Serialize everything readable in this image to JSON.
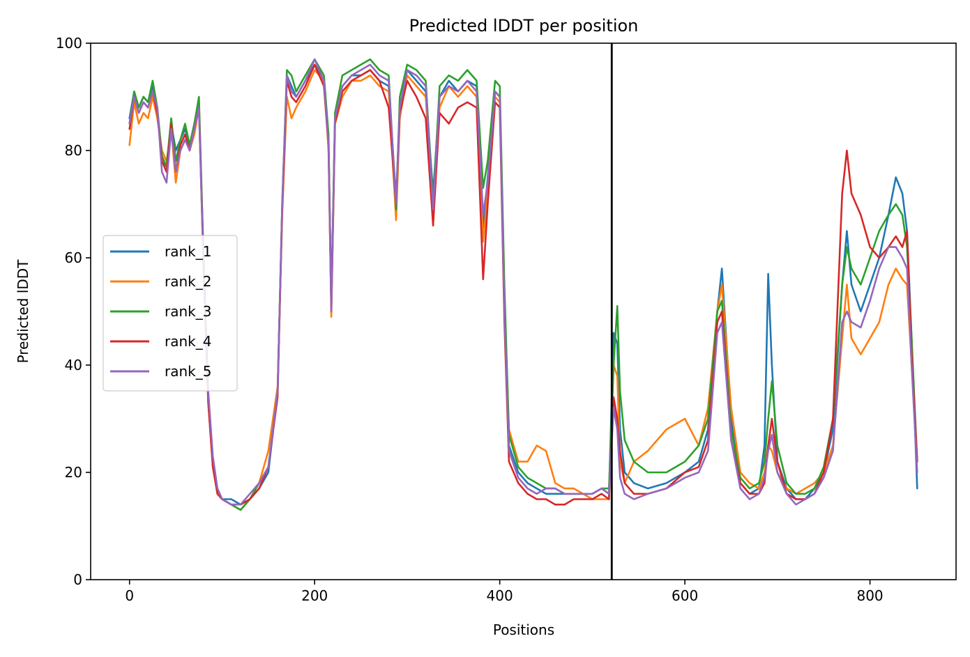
{
  "chart_data": {
    "type": "line",
    "title": "Predicted lDDT per position",
    "xlabel": "Positions",
    "ylabel": "Predicted lDDT",
    "xlim": [
      -42,
      893
    ],
    "ylim": [
      0,
      100
    ],
    "xticks": [
      0,
      200,
      400,
      600,
      800
    ],
    "yticks": [
      0,
      20,
      40,
      60,
      80,
      100
    ],
    "vline_x": 521,
    "grid": false,
    "legend_position": "center-left",
    "series": [
      {
        "name": "rank_1",
        "color": "#1f77b4",
        "x": [
          0,
          5,
          10,
          15,
          20,
          25,
          30,
          35,
          40,
          45,
          50,
          55,
          60,
          65,
          70,
          75,
          80,
          85,
          90,
          95,
          100,
          110,
          120,
          130,
          140,
          150,
          160,
          165,
          170,
          175,
          180,
          190,
          200,
          210,
          215,
          218,
          222,
          230,
          240,
          250,
          260,
          270,
          280,
          288,
          292,
          300,
          310,
          320,
          328,
          335,
          345,
          355,
          365,
          375,
          382,
          387,
          395,
          400,
          405,
          410,
          420,
          430,
          440,
          450,
          460,
          470,
          480,
          490,
          500,
          510,
          518,
          523,
          527,
          530,
          535,
          545,
          560,
          580,
          600,
          615,
          625,
          635,
          640,
          650,
          660,
          670,
          680,
          686,
          690,
          694,
          700,
          710,
          720,
          730,
          740,
          750,
          760,
          770,
          775,
          780,
          790,
          800,
          810,
          820,
          828,
          835,
          840,
          845,
          851
        ],
        "y": [
          86,
          91,
          88,
          90,
          89,
          92,
          88,
          78,
          77,
          85,
          80,
          82,
          84,
          81,
          85,
          89,
          60,
          35,
          22,
          16,
          15,
          15,
          14,
          15,
          17,
          20,
          35,
          70,
          94,
          92,
          90,
          93,
          96,
          93,
          82,
          52,
          86,
          92,
          94,
          94,
          95,
          93,
          92,
          71,
          88,
          95,
          93,
          91,
          72,
          90,
          93,
          91,
          93,
          92,
          65,
          75,
          91,
          90,
          50,
          25,
          20,
          18,
          17,
          16,
          16,
          16,
          16,
          16,
          16,
          17,
          16,
          46,
          44,
          28,
          20,
          18,
          17,
          18,
          20,
          22,
          28,
          50,
          58,
          30,
          18,
          16,
          17,
          25,
          57,
          40,
          22,
          17,
          15,
          15,
          17,
          20,
          28,
          55,
          65,
          55,
          50,
          55,
          60,
          68,
          75,
          72,
          65,
          45,
          17
        ]
      },
      {
        "name": "rank_2",
        "color": "#ff7f0e",
        "x": [
          0,
          5,
          10,
          15,
          20,
          25,
          30,
          35,
          40,
          45,
          50,
          55,
          60,
          65,
          70,
          75,
          80,
          85,
          90,
          95,
          100,
          110,
          120,
          130,
          140,
          150,
          160,
          165,
          170,
          175,
          180,
          190,
          200,
          210,
          215,
          218,
          222,
          230,
          240,
          250,
          260,
          270,
          280,
          288,
          292,
          300,
          310,
          320,
          328,
          335,
          345,
          355,
          365,
          375,
          382,
          387,
          395,
          400,
          405,
          410,
          420,
          430,
          440,
          450,
          460,
          470,
          480,
          490,
          500,
          510,
          518,
          523,
          527,
          530,
          535,
          545,
          560,
          580,
          600,
          615,
          625,
          635,
          640,
          650,
          660,
          670,
          680,
          686,
          690,
          694,
          700,
          710,
          720,
          730,
          740,
          750,
          760,
          770,
          775,
          780,
          790,
          800,
          810,
          820,
          828,
          835,
          840,
          845,
          851
        ],
        "y": [
          81,
          89,
          85,
          87,
          86,
          90,
          86,
          80,
          78,
          84,
          74,
          80,
          82,
          80,
          83,
          88,
          58,
          33,
          21,
          16,
          15,
          14,
          13,
          15,
          18,
          24,
          36,
          68,
          90,
          86,
          88,
          91,
          95,
          93,
          80,
          49,
          85,
          90,
          93,
          93,
          94,
          92,
          91,
          67,
          86,
          94,
          92,
          90,
          68,
          88,
          92,
          90,
          92,
          90,
          63,
          72,
          90,
          89,
          52,
          28,
          22,
          22,
          25,
          24,
          18,
          17,
          17,
          16,
          15,
          15,
          15,
          40,
          38,
          22,
          18,
          22,
          24,
          28,
          30,
          25,
          32,
          50,
          55,
          32,
          20,
          18,
          17,
          20,
          25,
          24,
          20,
          17,
          16,
          17,
          18,
          20,
          25,
          45,
          55,
          45,
          42,
          45,
          48,
          55,
          58,
          56,
          55,
          40,
          22
        ]
      },
      {
        "name": "rank_3",
        "color": "#2ca02c",
        "x": [
          0,
          5,
          10,
          15,
          20,
          25,
          30,
          35,
          40,
          45,
          50,
          55,
          60,
          65,
          70,
          75,
          80,
          85,
          90,
          95,
          100,
          110,
          120,
          130,
          140,
          150,
          160,
          165,
          170,
          175,
          180,
          190,
          200,
          210,
          215,
          218,
          222,
          230,
          240,
          250,
          260,
          270,
          280,
          288,
          292,
          300,
          310,
          320,
          328,
          335,
          345,
          355,
          365,
          375,
          382,
          387,
          395,
          400,
          405,
          410,
          420,
          430,
          440,
          450,
          460,
          470,
          480,
          490,
          500,
          510,
          518,
          523,
          527,
          530,
          535,
          545,
          560,
          580,
          600,
          615,
          625,
          635,
          640,
          650,
          660,
          670,
          680,
          686,
          690,
          694,
          700,
          710,
          720,
          730,
          740,
          750,
          760,
          770,
          775,
          780,
          790,
          800,
          810,
          820,
          828,
          835,
          840,
          845,
          851
        ],
        "y": [
          85,
          91,
          88,
          90,
          89,
          93,
          88,
          79,
          77,
          86,
          78,
          82,
          85,
          81,
          85,
          90,
          60,
          34,
          22,
          17,
          15,
          14,
          13,
          15,
          18,
          21,
          35,
          70,
          95,
          94,
          91,
          94,
          97,
          94,
          83,
          51,
          87,
          94,
          95,
          96,
          97,
          95,
          94,
          69,
          90,
          96,
          95,
          93,
          70,
          92,
          94,
          93,
          95,
          93,
          73,
          78,
          93,
          92,
          55,
          27,
          21,
          19,
          18,
          17,
          17,
          16,
          16,
          16,
          16,
          17,
          17,
          40,
          51,
          35,
          26,
          22,
          20,
          20,
          22,
          25,
          30,
          50,
          52,
          28,
          19,
          17,
          18,
          22,
          30,
          37,
          25,
          18,
          16,
          16,
          17,
          21,
          30,
          55,
          62,
          58,
          55,
          60,
          65,
          68,
          70,
          68,
          62,
          45,
          22
        ]
      },
      {
        "name": "rank_4",
        "color": "#d62728",
        "x": [
          0,
          5,
          10,
          15,
          20,
          25,
          30,
          35,
          40,
          45,
          50,
          55,
          60,
          65,
          70,
          75,
          80,
          85,
          90,
          95,
          100,
          110,
          120,
          130,
          140,
          150,
          160,
          165,
          170,
          175,
          180,
          190,
          200,
          210,
          215,
          218,
          222,
          230,
          240,
          250,
          260,
          270,
          280,
          288,
          292,
          300,
          310,
          320,
          328,
          335,
          345,
          355,
          365,
          375,
          382,
          387,
          395,
          400,
          405,
          410,
          420,
          430,
          440,
          450,
          460,
          470,
          480,
          490,
          500,
          510,
          518,
          523,
          527,
          530,
          535,
          545,
          560,
          580,
          600,
          615,
          625,
          635,
          640,
          650,
          660,
          670,
          680,
          686,
          690,
          694,
          700,
          710,
          720,
          730,
          740,
          750,
          760,
          770,
          775,
          780,
          790,
          800,
          810,
          820,
          828,
          835,
          840,
          845,
          851
        ],
        "y": [
          84,
          90,
          87,
          89,
          88,
          91,
          87,
          78,
          76,
          85,
          76,
          81,
          83,
          80,
          84,
          88,
          59,
          33,
          21,
          16,
          15,
          14,
          14,
          15,
          17,
          21,
          34,
          69,
          93,
          90,
          89,
          92,
          96,
          92,
          81,
          50,
          85,
          91,
          93,
          94,
          95,
          93,
          88,
          70,
          87,
          93,
          90,
          86,
          66,
          87,
          85,
          88,
          89,
          88,
          56,
          70,
          89,
          88,
          48,
          22,
          18,
          16,
          15,
          15,
          14,
          14,
          15,
          15,
          15,
          16,
          15,
          34,
          30,
          24,
          18,
          16,
          16,
          17,
          20,
          21,
          26,
          48,
          50,
          26,
          18,
          16,
          16,
          18,
          25,
          30,
          22,
          16,
          15,
          15,
          16,
          20,
          30,
          72,
          80,
          72,
          68,
          62,
          60,
          62,
          64,
          62,
          65,
          42,
          22
        ]
      },
      {
        "name": "rank_5",
        "color": "#9467bd",
        "x": [
          0,
          5,
          10,
          15,
          20,
          25,
          30,
          35,
          40,
          45,
          50,
          55,
          60,
          65,
          70,
          75,
          80,
          85,
          90,
          95,
          100,
          110,
          120,
          130,
          140,
          150,
          160,
          165,
          170,
          175,
          180,
          190,
          200,
          210,
          215,
          218,
          222,
          230,
          240,
          250,
          260,
          270,
          280,
          288,
          292,
          300,
          310,
          320,
          328,
          335,
          345,
          355,
          365,
          375,
          382,
          387,
          395,
          400,
          405,
          410,
          420,
          430,
          440,
          450,
          460,
          470,
          480,
          490,
          500,
          510,
          518,
          523,
          527,
          530,
          535,
          545,
          560,
          580,
          600,
          615,
          625,
          635,
          640,
          650,
          660,
          670,
          680,
          686,
          690,
          694,
          700,
          710,
          720,
          730,
          740,
          750,
          760,
          770,
          775,
          780,
          790,
          800,
          810,
          820,
          828,
          835,
          840,
          845,
          851
        ],
        "y": [
          85,
          90,
          87,
          89,
          88,
          91,
          88,
          76,
          74,
          84,
          76,
          80,
          82,
          80,
          84,
          88,
          58,
          35,
          23,
          17,
          15,
          14,
          14,
          16,
          18,
          21,
          35,
          70,
          94,
          91,
          90,
          93,
          97,
          93,
          81,
          50,
          86,
          92,
          94,
          95,
          96,
          94,
          93,
          70,
          88,
          95,
          94,
          92,
          69,
          90,
          92,
          91,
          93,
          91,
          68,
          74,
          91,
          90,
          50,
          24,
          19,
          17,
          16,
          17,
          17,
          16,
          16,
          16,
          16,
          17,
          16,
          32,
          28,
          19,
          16,
          15,
          16,
          17,
          19,
          20,
          24,
          46,
          48,
          26,
          17,
          15,
          16,
          19,
          24,
          27,
          20,
          16,
          14,
          15,
          16,
          19,
          24,
          48,
          50,
          48,
          47,
          52,
          58,
          62,
          62,
          60,
          58,
          40,
          20
        ]
      }
    ]
  }
}
